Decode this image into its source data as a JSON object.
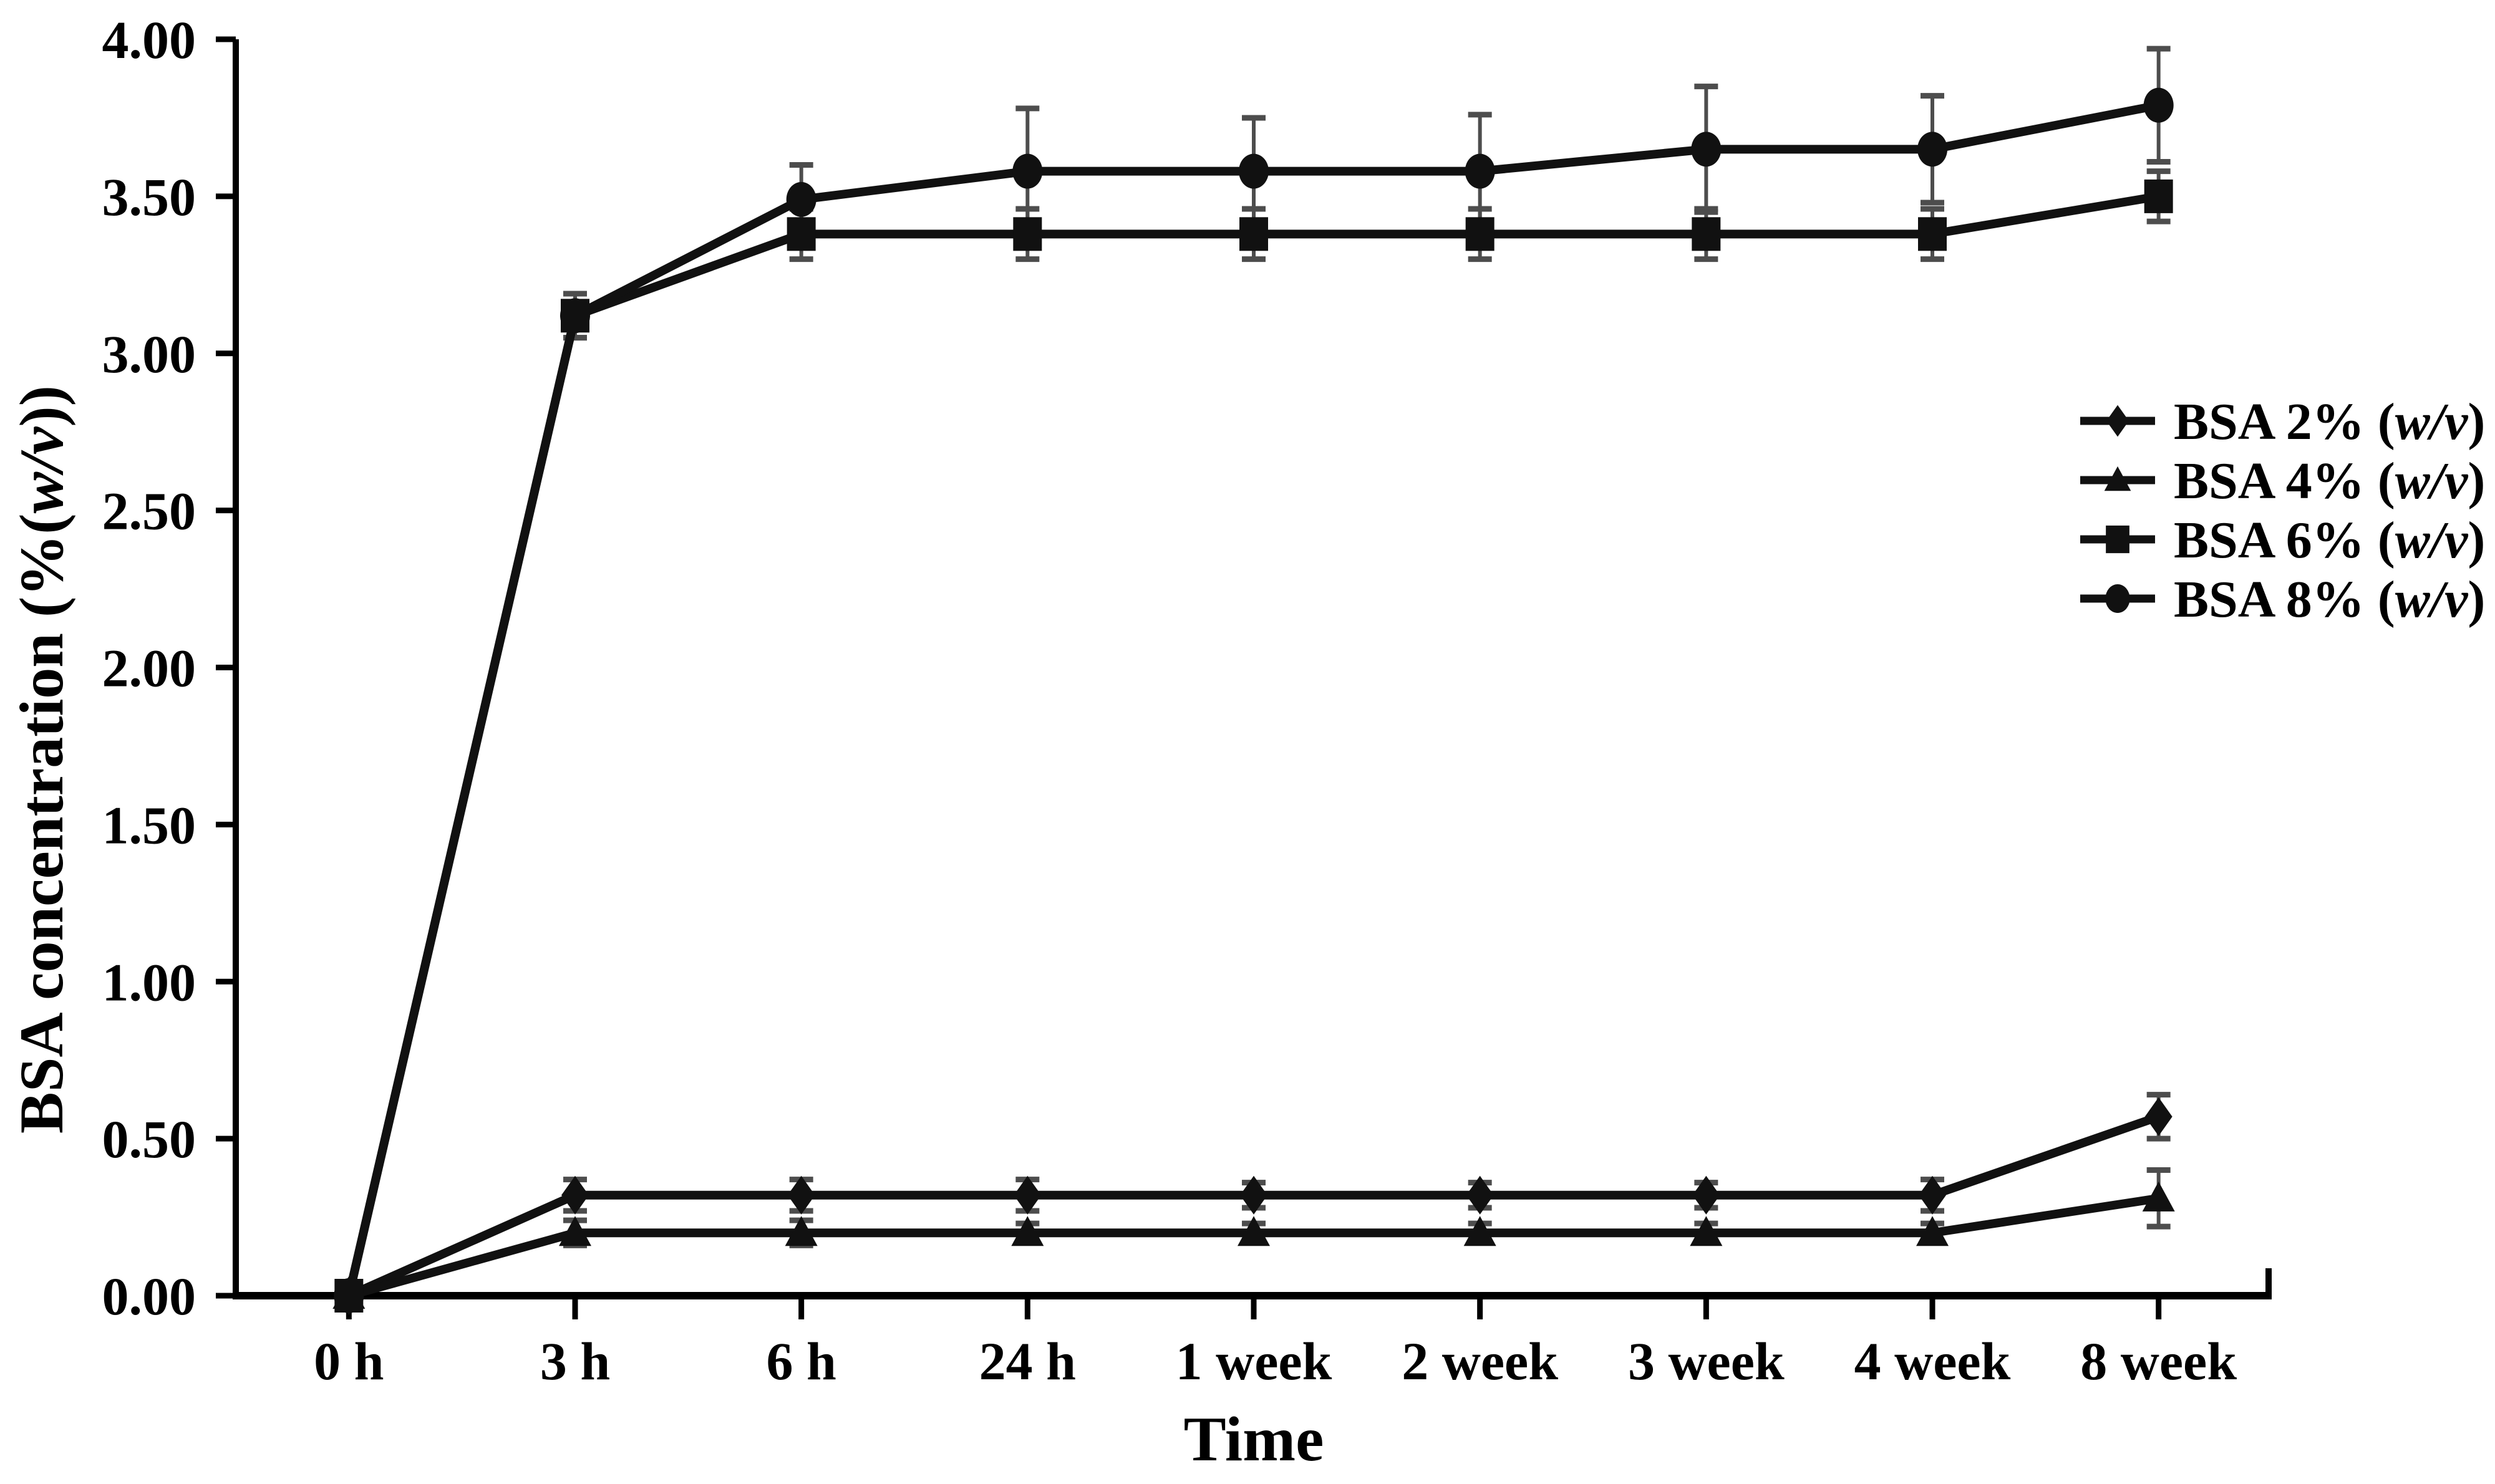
{
  "chart_data": {
    "type": "line",
    "title": "",
    "xlabel": "Time",
    "ylabel": "BSA concentration (%(w/v))",
    "italic_token": "w/v",
    "categories": [
      "0 h",
      "3 h",
      "6 h",
      "24 h",
      "1 week",
      "2 week",
      "3 week",
      "4 week",
      "8 week"
    ],
    "series": [
      {
        "name": "BSA 2% (w/v)",
        "marker": "diamond",
        "values": [
          0.0,
          0.32,
          0.32,
          0.32,
          0.32,
          0.32,
          0.32,
          0.32,
          0.57
        ],
        "errors": [
          0,
          0.05,
          0.05,
          0.05,
          0.04,
          0.04,
          0.04,
          0.05,
          0.07
        ]
      },
      {
        "name": "BSA 4% (w/v)",
        "marker": "triangle",
        "values": [
          0.0,
          0.2,
          0.2,
          0.2,
          0.2,
          0.2,
          0.2,
          0.2,
          0.31
        ],
        "errors": [
          0,
          0.04,
          0.04,
          0.03,
          0.03,
          0.03,
          0.03,
          0.03,
          0.09
        ]
      },
      {
        "name": "BSA 6% (w/v)",
        "marker": "square",
        "values": [
          0.0,
          3.12,
          3.38,
          3.38,
          3.38,
          3.38,
          3.38,
          3.38,
          3.5
        ],
        "errors": [
          0,
          0.07,
          0.08,
          0.08,
          0.08,
          0.08,
          0.08,
          0.08,
          0.08
        ]
      },
      {
        "name": "BSA 8% (w/v)",
        "marker": "circle",
        "values": [
          0.0,
          3.12,
          3.49,
          3.58,
          3.58,
          3.58,
          3.65,
          3.65,
          3.79
        ],
        "errors": [
          0,
          0.07,
          0.11,
          0.2,
          0.17,
          0.18,
          0.2,
          0.17,
          0.18
        ]
      }
    ],
    "ylim": [
      0,
      4
    ],
    "y_tick_step": 0.5,
    "y_tick_labels": [
      "0.00",
      "0.50",
      "1.00",
      "1.50",
      "2.00",
      "2.50",
      "3.00",
      "3.50",
      "4.00"
    ],
    "x_tick_labels": [
      "0 h",
      "3 h",
      "6 h",
      "24 h",
      "1 week",
      "2 week",
      "3 week",
      "4 week",
      "8 week"
    ],
    "grid": false,
    "legend_position": "right-inside",
    "colors": {
      "series": "#111111",
      "axis": "#000000",
      "error_bar": "#4d4d4d",
      "background": "#ffffff",
      "text": "#000000"
    }
  }
}
